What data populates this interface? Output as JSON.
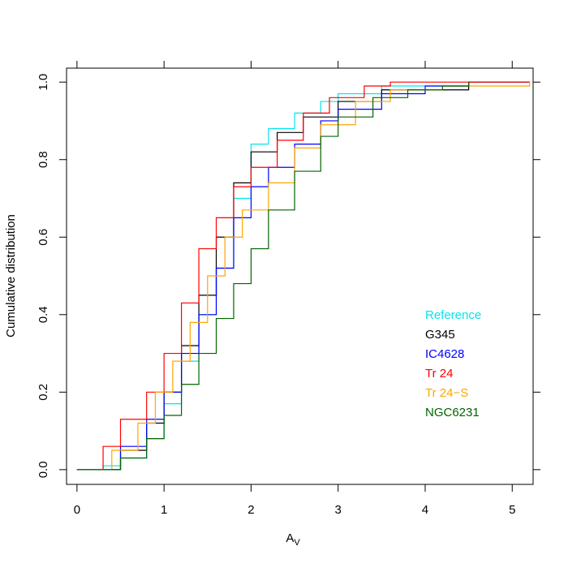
{
  "chart_data": {
    "type": "step",
    "xlabel": "A",
    "xlabel_sub": "V",
    "ylabel": "Cumulative distribution",
    "xlim": [
      -0.12,
      5.24
    ],
    "ylim": [
      -0.038,
      1.036
    ],
    "xticks": [
      0,
      1,
      2,
      3,
      4,
      5
    ],
    "yticks": [
      {
        "value": 0,
        "label": "0.0"
      },
      0.2,
      0.4,
      0.6,
      0.8,
      {
        "value": 1,
        "label": "1.0"
      }
    ],
    "legend": "right",
    "series": [
      {
        "name": "Reference",
        "color": "#00e5ee",
        "x": [
          0,
          0.3,
          0.5,
          0.8,
          1.0,
          1.2,
          1.4,
          1.6,
          1.8,
          2.0,
          2.2,
          2.5,
          2.8,
          3.0,
          3.5,
          4.5,
          5.2
        ],
        "values": [
          0,
          0.01,
          0.03,
          0.08,
          0.17,
          0.28,
          0.4,
          0.52,
          0.7,
          0.84,
          0.88,
          0.92,
          0.95,
          0.97,
          0.99,
          1.0,
          1.0
        ]
      },
      {
        "name": "G345",
        "color": "#000000",
        "x": [
          0,
          0.5,
          0.8,
          1.0,
          1.2,
          1.4,
          1.6,
          1.8,
          2.0,
          2.3,
          2.6,
          3.0,
          3.5,
          4.5,
          5.2
        ],
        "values": [
          0,
          0.05,
          0.12,
          0.2,
          0.32,
          0.45,
          0.6,
          0.74,
          0.82,
          0.87,
          0.91,
          0.95,
          0.98,
          1.0,
          1.0
        ]
      },
      {
        "name": "IC4628",
        "color": "#0000ff",
        "x": [
          0,
          0.5,
          0.8,
          1.0,
          1.2,
          1.4,
          1.6,
          1.8,
          2.0,
          2.2,
          2.5,
          2.8,
          3.0,
          3.5,
          4.0,
          4.5
        ],
        "values": [
          0,
          0.06,
          0.13,
          0.2,
          0.3,
          0.4,
          0.52,
          0.65,
          0.73,
          0.78,
          0.84,
          0.9,
          0.93,
          0.97,
          0.99,
          1.0
        ]
      },
      {
        "name": "Tr 24",
        "color": "#ff0000",
        "x": [
          0,
          0.3,
          0.5,
          0.8,
          1.0,
          1.2,
          1.4,
          1.6,
          1.8,
          2.0,
          2.3,
          2.6,
          2.9,
          3.3,
          3.6,
          5.2
        ],
        "values": [
          0,
          0.06,
          0.13,
          0.2,
          0.3,
          0.43,
          0.57,
          0.65,
          0.73,
          0.78,
          0.85,
          0.92,
          0.96,
          0.99,
          1.0,
          1.0
        ]
      },
      {
        "name": "Tr 24−S",
        "color": "#ffa500",
        "x": [
          0,
          0.4,
          0.7,
          0.9,
          1.1,
          1.3,
          1.5,
          1.7,
          1.9,
          2.2,
          2.5,
          2.8,
          3.2,
          3.6,
          4.2,
          5.2
        ],
        "values": [
          0,
          0.05,
          0.12,
          0.2,
          0.28,
          0.38,
          0.5,
          0.6,
          0.67,
          0.74,
          0.83,
          0.89,
          0.95,
          0.98,
          0.99,
          1.0
        ]
      },
      {
        "name": "NGC6231",
        "color": "#006400",
        "x": [
          0,
          0.5,
          0.8,
          1.0,
          1.2,
          1.4,
          1.6,
          1.8,
          2.0,
          2.2,
          2.5,
          2.8,
          3.0,
          3.4,
          3.8,
          4.2,
          4.5
        ],
        "values": [
          0,
          0.03,
          0.08,
          0.14,
          0.22,
          0.3,
          0.39,
          0.48,
          0.57,
          0.67,
          0.77,
          0.86,
          0.91,
          0.96,
          0.98,
          0.99,
          1.0
        ]
      }
    ]
  }
}
